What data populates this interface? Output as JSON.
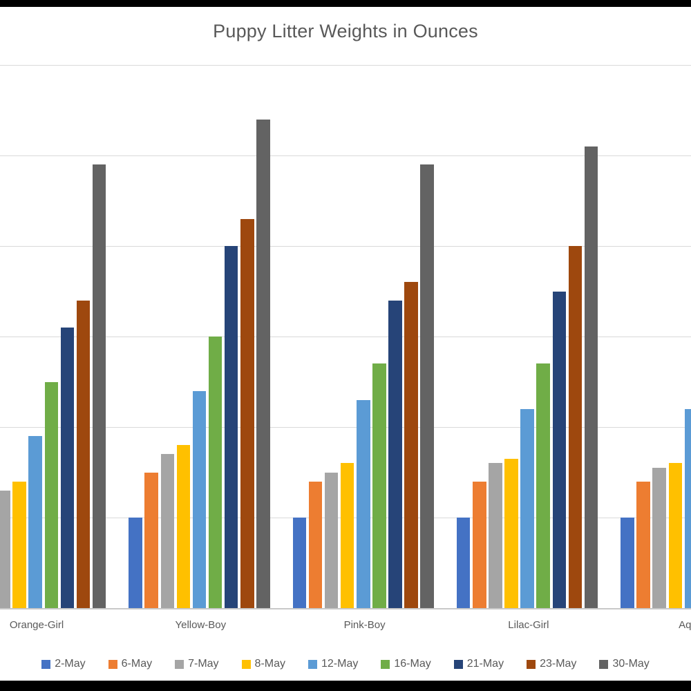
{
  "chart_data": {
    "type": "bar",
    "title": "Puppy Litter Weights in Ounces",
    "categories": [
      "Orange-Girl",
      "Yellow-Boy",
      "Pink-Boy",
      "Lilac-Girl",
      "Aqua-"
    ],
    "series": [
      {
        "name": "2-May",
        "color": "#4472C4",
        "values": [
          null,
          10,
          10,
          10,
          10
        ]
      },
      {
        "name": "6-May",
        "color": "#ED7D31",
        "values": [
          null,
          15,
          14,
          14,
          14
        ]
      },
      {
        "name": "7-May",
        "color": "#A5A5A5",
        "values": [
          13,
          17,
          15,
          16,
          15.5
        ]
      },
      {
        "name": "8-May",
        "color": "#FFC000",
        "values": [
          14,
          18,
          16,
          16.5,
          16
        ]
      },
      {
        "name": "12-May",
        "color": "#5B9BD5",
        "values": [
          19,
          24,
          23,
          22,
          22
        ]
      },
      {
        "name": "16-May",
        "color": "#70AD47",
        "values": [
          25,
          30,
          27,
          27,
          null
        ]
      },
      {
        "name": "21-May",
        "color": "#264478",
        "values": [
          31,
          40,
          34,
          35,
          null
        ]
      },
      {
        "name": "23-May",
        "color": "#9E480E",
        "values": [
          34,
          43,
          36,
          40,
          null
        ]
      },
      {
        "name": "30-May",
        "color": "#636363",
        "values": [
          49,
          54,
          49,
          51,
          null
        ]
      }
    ],
    "xlabel": "",
    "ylabel": "",
    "ylim": [
      0,
      60
    ],
    "y_gridline_interval": 10,
    "grid": true,
    "legend_position": "bottom"
  },
  "colors": {
    "title_text": "#595959",
    "axis_text": "#595959",
    "gridline": "#D9D9D9",
    "axis_line": "#C8C8C8",
    "background": "#FFFFFF",
    "letterbox": "#000000"
  }
}
